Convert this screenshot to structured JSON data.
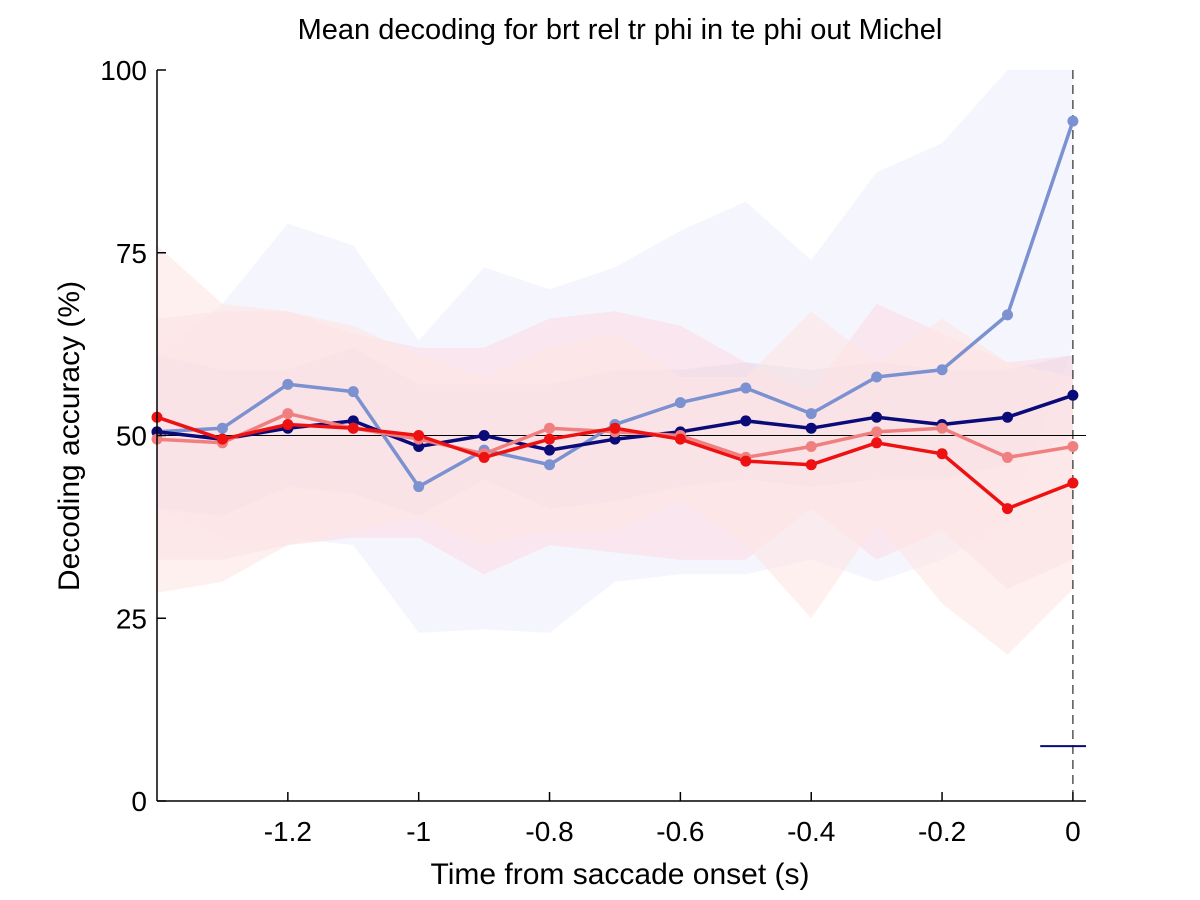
{
  "chart_data": {
    "type": "line",
    "title": "Mean decoding for brt rel tr phi in te phi out  Michel",
    "xlabel": "Time from saccade onset (s)",
    "ylabel": "Decoding accuracy (%)",
    "xlim": [
      -1.4,
      0.02
    ],
    "ylim": [
      0,
      100
    ],
    "xticks": [
      -1.2,
      -1,
      -0.8,
      -0.6,
      -0.4,
      -0.2,
      0
    ],
    "xtick_labels": [
      "-1.2",
      "-1",
      "-0.8",
      "-0.6",
      "-0.4",
      "-0.2",
      "0"
    ],
    "yticks": [
      0,
      25,
      50,
      75,
      100
    ],
    "ytick_labels": [
      "0",
      "25",
      "50",
      "75",
      "100"
    ],
    "grid": false,
    "legend": "none",
    "x": [
      -1.4,
      -1.3,
      -1.2,
      -1.1,
      -1.0,
      -0.9,
      -0.8,
      -0.7,
      -0.6,
      -0.5,
      -0.4,
      -0.3,
      -0.2,
      -0.1,
      0.0
    ],
    "series": [
      {
        "color": "#7b91d0",
        "band_color": "#eef0fb",
        "values": [
          50.5,
          51,
          57,
          56,
          43,
          48,
          46,
          51.5,
          54.5,
          56.5,
          53,
          58,
          59,
          66.5,
          93
        ],
        "lower": [
          40,
          36,
          36,
          35,
          23,
          23.5,
          23,
          30,
          31,
          31,
          33,
          30,
          33,
          38,
          62
        ],
        "upper": [
          61,
          68,
          79,
          76,
          63,
          73,
          70,
          73,
          78,
          82,
          74,
          86,
          90,
          100,
          100
        ]
      },
      {
        "color": "#0a0a78",
        "band_color": "#ddd8ec",
        "values": [
          50.5,
          49.5,
          51,
          52,
          48.5,
          50,
          48,
          49.5,
          50.5,
          52,
          51,
          52.5,
          51.5,
          52.5,
          55.5
        ],
        "lower": [
          40,
          39,
          43,
          42,
          39,
          44,
          40,
          41,
          43,
          44,
          43,
          44,
          44,
          46,
          50
        ],
        "upper": [
          61,
          59,
          59,
          62,
          57,
          57,
          57,
          59,
          59,
          60,
          59,
          60,
          59,
          59,
          61
        ]
      },
      {
        "color": "#f08080",
        "band_color": "#fbdce4",
        "values": [
          49.5,
          49,
          53,
          51,
          49.5,
          47.5,
          51,
          50.5,
          50,
          47,
          48.5,
          50.5,
          51,
          47,
          48.5
        ],
        "lower": [
          33,
          33,
          35,
          36,
          36,
          31,
          35,
          34,
          33,
          33,
          40,
          33,
          37,
          29,
          33
        ],
        "upper": [
          66,
          67,
          67,
          64,
          62,
          62,
          66,
          67,
          65,
          60,
          56,
          68,
          64,
          60,
          61
        ]
      },
      {
        "color": "#ee1111",
        "band_color": "#fde6e4",
        "values": [
          52.5,
          49.5,
          51.5,
          51,
          50,
          47,
          49.5,
          51,
          49.5,
          46.5,
          46,
          49,
          47.5,
          40,
          43.5
        ],
        "lower": [
          28.5,
          30,
          35,
          37,
          39,
          35,
          37,
          37,
          41,
          35,
          25,
          38,
          27,
          20,
          29
        ],
        "upper": [
          76,
          68,
          67,
          65,
          61,
          58,
          62,
          64,
          58,
          58,
          67,
          60,
          66,
          60,
          58
        ]
      }
    ],
    "reference_lines": {
      "horizontal_y": 50,
      "vertical_dashed_x": 0
    },
    "significance_marker": {
      "color": "#0a0a78",
      "y": 7.5,
      "x_range": [
        -0.05,
        0.02
      ]
    }
  }
}
